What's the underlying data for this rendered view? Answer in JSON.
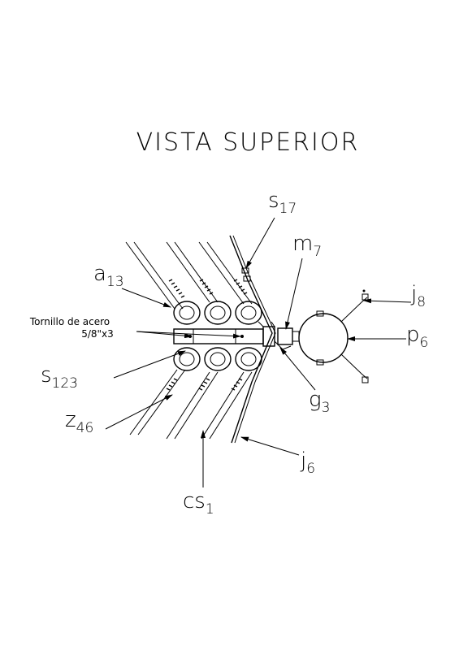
{
  "title": "VISTA SUPERIOR",
  "labels": {
    "s17": {
      "main": "s",
      "sub": "17"
    },
    "m7": {
      "main": "m",
      "sub": "7"
    },
    "a13": {
      "main": "a",
      "sub": "13"
    },
    "j8": {
      "main": "j",
      "sub": "8"
    },
    "p6": {
      "main": "p",
      "sub": "6"
    },
    "s123": {
      "main": "s",
      "sub": "123"
    },
    "g3": {
      "main": "g",
      "sub": "3"
    },
    "z46": {
      "main": "z",
      "sub": "46"
    },
    "j6": {
      "main": "j",
      "sub": "6"
    },
    "cs1": {
      "main": "cs",
      "sub": "1"
    }
  },
  "tornillo": {
    "line1": "Tornillo de acero",
    "line2": "5/8\"x3"
  }
}
